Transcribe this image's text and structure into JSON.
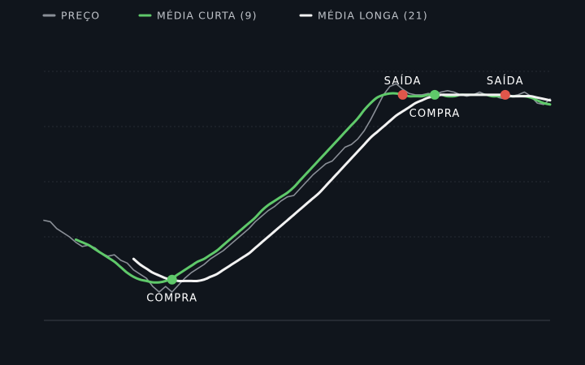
{
  "chart_data": {
    "type": "line",
    "title": "",
    "xlabel": "",
    "ylabel": "",
    "x": [
      0,
      1,
      2,
      3,
      4,
      5,
      6,
      7,
      8,
      9,
      10,
      11,
      12,
      13,
      14,
      15,
      16,
      17,
      18,
      19,
      20,
      21,
      22,
      23,
      24,
      25,
      26,
      27,
      28,
      29,
      30,
      31,
      32,
      33,
      34,
      35,
      36,
      37,
      38,
      39,
      40,
      41,
      42,
      43,
      44,
      45,
      46,
      47,
      48,
      49,
      50,
      51,
      52,
      53,
      54,
      55,
      56,
      57,
      58,
      59,
      60,
      61,
      62,
      63,
      64,
      65,
      66,
      67,
      68,
      69,
      70,
      71,
      72,
      73,
      74,
      75,
      76,
      77,
      78,
      79
    ],
    "xlim": [
      0,
      79
    ],
    "ylim": [
      0,
      100
    ],
    "grid": true,
    "gridlines": [
      30,
      50,
      70,
      90
    ],
    "legend_position": "top-left",
    "colors": {
      "background": "#10151c",
      "grid": "#262c35",
      "axis": "#3a4048",
      "price": "#8a8f97",
      "short_ma": "#5fc96a",
      "long_ma": "#f2f2f2",
      "buy": "#5fc96a",
      "sell": "#e0564b",
      "label": "#ffffff",
      "legend_text": "#bfc3c9"
    },
    "series": [
      {
        "name": "PREÇO",
        "color": "#8a8f97",
        "values": [
          36.0,
          35.5,
          33.0,
          31.5,
          30.0,
          28.0,
          26.5,
          27.0,
          26.0,
          24.0,
          23.0,
          23.5,
          21.5,
          20.5,
          18.0,
          16.5,
          15.0,
          12.0,
          10.0,
          12.0,
          10.0,
          12.5,
          15.0,
          17.0,
          18.5,
          20.0,
          22.0,
          23.5,
          25.0,
          27.0,
          29.0,
          31.0,
          33.0,
          35.5,
          37.5,
          39.5,
          41.0,
          43.0,
          44.5,
          45.0,
          47.5,
          50.0,
          52.5,
          54.5,
          56.5,
          57.5,
          60.0,
          62.5,
          63.5,
          65.5,
          68.5,
          72.5,
          77.0,
          81.5,
          84.5,
          85.5,
          83.5,
          82.0,
          81.5,
          81.5,
          82.0,
          81.5,
          82.5,
          83.0,
          82.5,
          81.5,
          81.0,
          81.5,
          82.5,
          81.5,
          81.5,
          80.5,
          80.0,
          81.0,
          81.5,
          82.5,
          81.0,
          78.5,
          78.0,
          80.0
        ]
      },
      {
        "name": "MÉDIA CURTA (9)",
        "color": "#5fc96a",
        "values": [
          null,
          null,
          null,
          null,
          null,
          29.0,
          28.0,
          27.0,
          25.5,
          24.0,
          22.5,
          21.0,
          19.0,
          17.0,
          15.5,
          14.5,
          14.0,
          13.5,
          13.5,
          14.0,
          15.0,
          16.5,
          18.0,
          19.5,
          21.0,
          22.0,
          23.5,
          25.0,
          27.0,
          29.0,
          31.0,
          33.0,
          35.0,
          37.0,
          39.5,
          41.5,
          43.0,
          44.5,
          46.0,
          48.0,
          50.5,
          53.0,
          55.5,
          58.0,
          60.5,
          63.0,
          65.5,
          68.0,
          70.5,
          73.0,
          76.0,
          78.5,
          80.5,
          81.5,
          82.0,
          82.0,
          81.5,
          81.0,
          81.0,
          81.0,
          81.5,
          81.5,
          81.5,
          81.0,
          81.0,
          81.5,
          81.5,
          81.5,
          81.5,
          81.5,
          81.0,
          81.0,
          81.0,
          81.0,
          81.0,
          81.0,
          80.5,
          79.5,
          78.5,
          78.0
        ]
      },
      {
        "name": "MÉDIA LONGA (21)",
        "color": "#f2f2f2",
        "values": [
          null,
          null,
          null,
          null,
          null,
          null,
          null,
          null,
          null,
          null,
          null,
          null,
          null,
          null,
          22.0,
          20.0,
          18.5,
          17.0,
          16.0,
          15.0,
          14.5,
          14.0,
          14.0,
          14.0,
          14.0,
          14.5,
          15.5,
          16.5,
          18.0,
          19.5,
          21.0,
          22.5,
          24.0,
          26.0,
          28.0,
          30.0,
          32.0,
          34.0,
          36.0,
          38.0,
          40.0,
          42.0,
          44.0,
          46.0,
          48.5,
          51.0,
          53.5,
          56.0,
          58.5,
          61.0,
          63.5,
          66.0,
          68.0,
          70.0,
          72.0,
          74.0,
          75.5,
          77.0,
          78.5,
          79.5,
          80.5,
          81.0,
          81.5,
          81.5,
          81.5,
          81.5,
          81.5,
          81.5,
          81.5,
          81.5,
          81.5,
          81.5,
          81.5,
          81.0,
          81.0,
          81.0,
          81.0,
          80.5,
          80.0,
          79.5
        ]
      }
    ],
    "annotations": [
      {
        "type": "buy",
        "x": 20,
        "y": 14.5,
        "label": "COMPRA",
        "label_position": "below"
      },
      {
        "type": "sell",
        "x": 56,
        "y": 81.5,
        "label": "SAÍDA",
        "label_position": "above"
      },
      {
        "type": "buy",
        "x": 61,
        "y": 81.5,
        "label": "COMPRA",
        "label_position": "below"
      },
      {
        "type": "sell",
        "x": 72,
        "y": 81.5,
        "label": "SAÍDA",
        "label_position": "above"
      }
    ]
  }
}
